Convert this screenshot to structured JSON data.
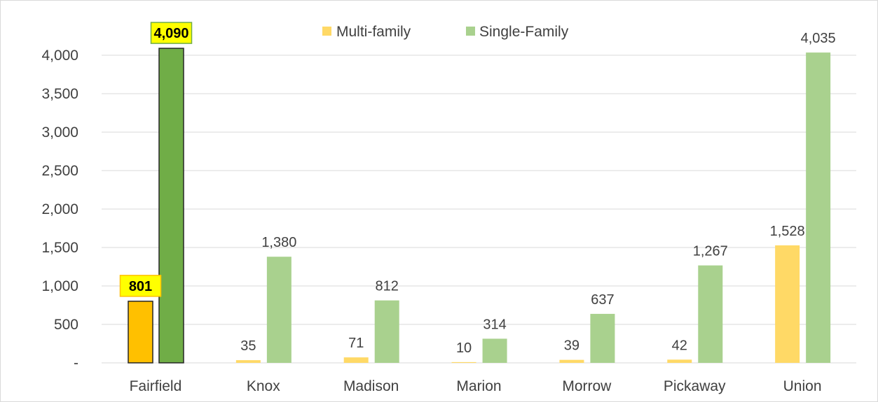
{
  "chart_data": {
    "type": "bar",
    "categories": [
      "Fairfield",
      "Knox",
      "Madison",
      "Marion",
      "Morrow",
      "Pickaway",
      "Union"
    ],
    "series": [
      {
        "name": "Multi-family",
        "values": [
          801,
          35,
          71,
          10,
          39,
          42,
          1528
        ],
        "labels": [
          "801",
          "35",
          "71",
          "10",
          "39",
          "42",
          "1,528"
        ]
      },
      {
        "name": "Single-Family",
        "values": [
          4090,
          1380,
          812,
          314,
          637,
          1267,
          4035
        ],
        "labels": [
          "4,090",
          "1,380",
          "812",
          "314",
          "637",
          "1,267",
          "4,035"
        ]
      }
    ],
    "highlighted_category": "Fairfield",
    "ylim": [
      0,
      4000
    ],
    "yticks": [
      0,
      500,
      1000,
      1500,
      2000,
      2500,
      3000,
      3500,
      4000
    ],
    "ytick_labels": [
      "-",
      "500",
      "1,000",
      "1,500",
      "2,000",
      "2,500",
      "3,000",
      "3,500",
      "4,000"
    ],
    "grid": true,
    "legend_position": "top-center",
    "colors": {
      "multi": "#ffd966",
      "single": "#a9d18e",
      "multi_highlight": "#ffc000",
      "single_highlight": "#70ad47",
      "label_highlight_bg": "#ffff00",
      "grid": "#d9d9d9"
    }
  }
}
